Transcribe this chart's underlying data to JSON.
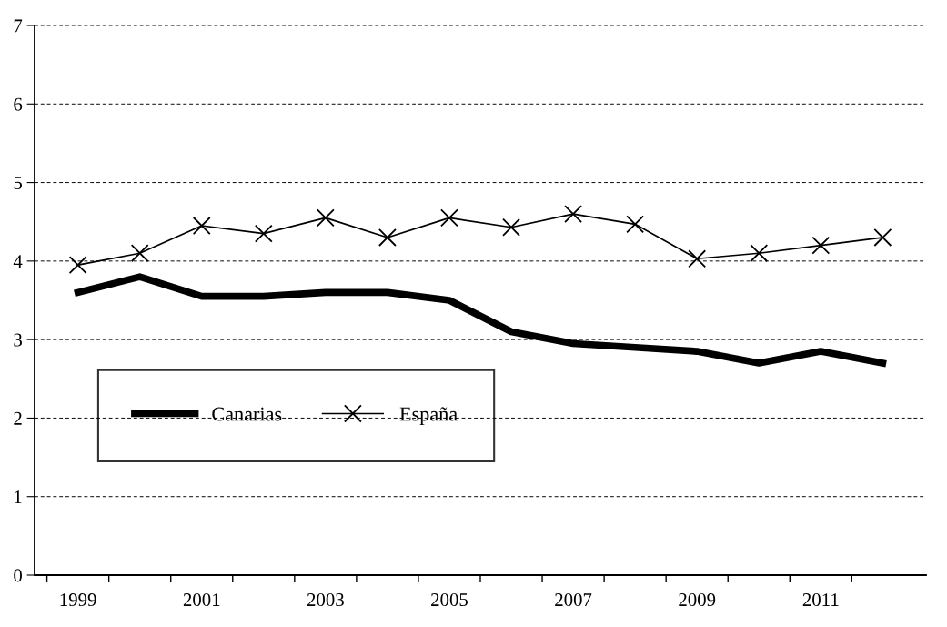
{
  "chart_data": {
    "type": "line",
    "categories": [
      "1999",
      null,
      "2001",
      null,
      "2003",
      null,
      "2005",
      null,
      "2007",
      null,
      "2009",
      null,
      "2011",
      null
    ],
    "series": [
      {
        "name": "Canarias",
        "color": "#000000",
        "marker": "none",
        "values": [
          3.6,
          3.8,
          3.55,
          3.55,
          3.6,
          3.6,
          3.5,
          3.1,
          2.95,
          2.9,
          2.85,
          2.7,
          2.85,
          2.7
        ]
      },
      {
        "name": "España",
        "color": "#000000",
        "marker": "cross",
        "values": [
          3.95,
          4.1,
          4.45,
          4.35,
          4.55,
          4.3,
          4.55,
          4.43,
          4.6,
          4.47,
          4.03,
          4.1,
          4.2,
          4.3
        ]
      }
    ],
    "ylim": [
      0,
      7
    ],
    "yticks": [
      0,
      1,
      2,
      3,
      4,
      5,
      6,
      7
    ],
    "grid": "y",
    "legend": "bottom left",
    "line_style": "solid"
  }
}
